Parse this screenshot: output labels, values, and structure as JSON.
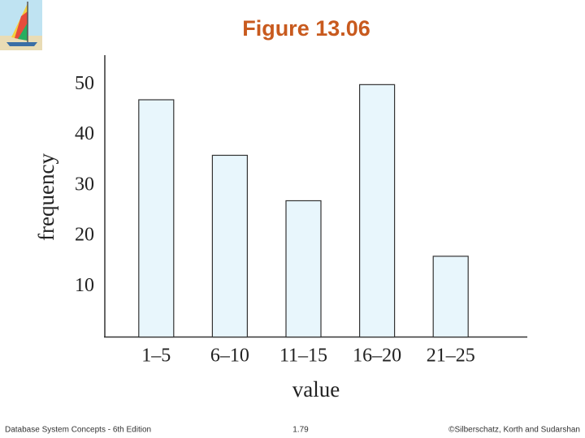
{
  "chart_data": {
    "type": "bar",
    "title": "Figure 13.06",
    "x_label": "value",
    "y_label": "frequency",
    "categories": [
      "1–5",
      "6–10",
      "11–15",
      "16–20",
      "21–25"
    ],
    "values": [
      47,
      36,
      27,
      50,
      16
    ],
    "color": "#e8f6fc",
    "ylim": [
      0,
      56
    ],
    "yticks": [
      10,
      20,
      30,
      40,
      50
    ],
    "grid": false
  },
  "footer": {
    "left": "Database System Concepts - 6th Edition",
    "center": "1.79",
    "right": "©Silberschatz, Korth and Sudarshan"
  }
}
